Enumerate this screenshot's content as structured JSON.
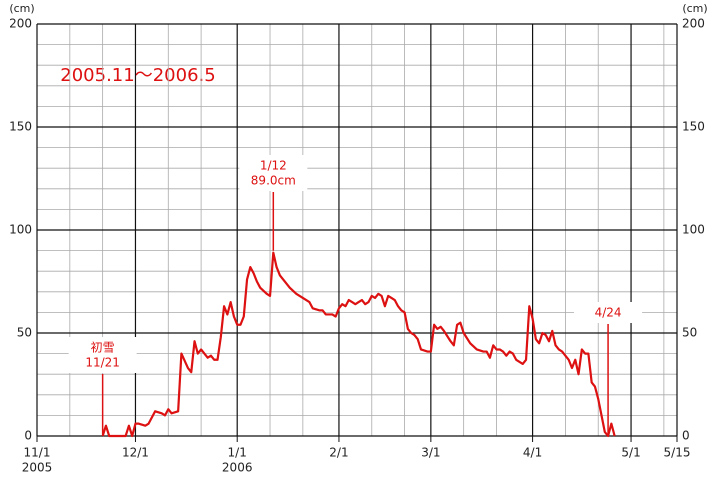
{
  "chart_data": {
    "type": "line",
    "title": "2005.11～2006.5",
    "y_unit": "(cm)",
    "y2_unit": "(cm)",
    "color": "#dd1111",
    "x": [
      "2005-11-21",
      "2005-11-22",
      "2005-11-23",
      "2005-11-28",
      "2005-11-29",
      "2005-11-30",
      "2005-12-01",
      "2005-12-02",
      "2005-12-04",
      "2005-12-05",
      "2005-12-07",
      "2005-12-09",
      "2005-12-10",
      "2005-12-11",
      "2005-12-12",
      "2005-12-14",
      "2005-12-15",
      "2005-12-17",
      "2005-12-18",
      "2005-12-19",
      "2005-12-20",
      "2005-12-21",
      "2005-12-23",
      "2005-12-24",
      "2005-12-25",
      "2005-12-26",
      "2005-12-27",
      "2005-12-28",
      "2005-12-29",
      "2005-12-30",
      "2005-12-31",
      "2006-01-01",
      "2006-01-02",
      "2006-01-03",
      "2006-01-04",
      "2006-01-05",
      "2006-01-06",
      "2006-01-07",
      "2006-01-08",
      "2006-01-10",
      "2006-01-11",
      "2006-01-12",
      "2006-01-13",
      "2006-01-14",
      "2006-01-15",
      "2006-01-17",
      "2006-01-19",
      "2006-01-21",
      "2006-01-23",
      "2006-01-24",
      "2006-01-26",
      "2006-01-27",
      "2006-01-28",
      "2006-01-30",
      "2006-01-31",
      "2006-02-01",
      "2006-02-02",
      "2006-02-03",
      "2006-02-04",
      "2006-02-05",
      "2006-02-06",
      "2006-02-07",
      "2006-02-08",
      "2006-02-09",
      "2006-02-10",
      "2006-02-11",
      "2006-02-12",
      "2006-02-13",
      "2006-02-14",
      "2006-02-15",
      "2006-02-16",
      "2006-02-17",
      "2006-02-18",
      "2006-02-19",
      "2006-02-20",
      "2006-02-21",
      "2006-02-22",
      "2006-02-23",
      "2006-02-24",
      "2006-02-25",
      "2006-02-26",
      "2006-02-28",
      "2006-03-01",
      "2006-03-02",
      "2006-03-03",
      "2006-03-04",
      "2006-03-05",
      "2006-03-07",
      "2006-03-08",
      "2006-03-09",
      "2006-03-10",
      "2006-03-11",
      "2006-03-13",
      "2006-03-15",
      "2006-03-17",
      "2006-03-18",
      "2006-03-19",
      "2006-03-20",
      "2006-03-21",
      "2006-03-22",
      "2006-03-23",
      "2006-03-24",
      "2006-03-25",
      "2006-03-26",
      "2006-03-27",
      "2006-03-29",
      "2006-03-30",
      "2006-03-31",
      "2006-04-01",
      "2006-04-02",
      "2006-04-03",
      "2006-04-04",
      "2006-04-05",
      "2006-04-06",
      "2006-04-07",
      "2006-04-08",
      "2006-04-09",
      "2006-04-10",
      "2006-04-11",
      "2006-04-12",
      "2006-04-13",
      "2006-04-14",
      "2006-04-15",
      "2006-04-16",
      "2006-04-17",
      "2006-04-18",
      "2006-04-19",
      "2006-04-20",
      "2006-04-21",
      "2006-04-22",
      "2006-04-23",
      "2006-04-24",
      "2006-04-25",
      "2006-04-26"
    ],
    "values": [
      0,
      5,
      0,
      0,
      5,
      0,
      6,
      6,
      5,
      6,
      12,
      11,
      10,
      13,
      11,
      12,
      40,
      33,
      31,
      46,
      40,
      42,
      38,
      39,
      37,
      37,
      48,
      63,
      59,
      65,
      58,
      54,
      54,
      58,
      76,
      82,
      79,
      75,
      72,
      69,
      68,
      89,
      82,
      78,
      76,
      72,
      69,
      67,
      65,
      62,
      61,
      61,
      59,
      59,
      58,
      62,
      64,
      63,
      66,
      65,
      64,
      65,
      66,
      64,
      65,
      68,
      67,
      69,
      68,
      63,
      68,
      67,
      66,
      63,
      61,
      60,
      52,
      50,
      49,
      47,
      42,
      41,
      41,
      54,
      52,
      53,
      51,
      46,
      44,
      54,
      55,
      50,
      45,
      42,
      41,
      41,
      38,
      44,
      42,
      42,
      41,
      39,
      41,
      40,
      37,
      35,
      37,
      63,
      57,
      47,
      45,
      50,
      49,
      46,
      51,
      44,
      42,
      41,
      39,
      37,
      33,
      37,
      30,
      42,
      40,
      40,
      26,
      24,
      18,
      10,
      2,
      0,
      6,
      0
    ],
    "xlim": [
      "2005-11-01",
      "2006-05-15"
    ],
    "xticks": [
      {
        "value": "2005-11-01",
        "label": "11/1"
      },
      {
        "value": "2005-12-01",
        "label": "12/1"
      },
      {
        "value": "2006-01-01",
        "label": "1/1"
      },
      {
        "value": "2006-02-01",
        "label": "2/1"
      },
      {
        "value": "2006-03-01",
        "label": "3/1"
      },
      {
        "value": "2006-04-01",
        "label": "4/1"
      },
      {
        "value": "2006-05-01",
        "label": "5/1"
      },
      {
        "value": "2006-05-15",
        "label": "5/15"
      }
    ],
    "xtick_years": [
      {
        "value": "2005-11-01",
        "label": "2005"
      },
      {
        "value": "2006-01-01",
        "label": "2006"
      }
    ],
    "ylim": [
      0,
      200
    ],
    "yticks": [
      0,
      50,
      100,
      150,
      200
    ],
    "y2lim": [
      0,
      200
    ],
    "y2ticks": [
      0,
      50,
      100,
      150,
      200
    ],
    "grid": true,
    "annotations": [
      {
        "lines": [
          "初雪",
          "11/21"
        ],
        "x": "2005-11-21",
        "y": 0
      },
      {
        "lines": [
          "1/12",
          "89.0cm"
        ],
        "x": "2006-01-12",
        "y": 89
      },
      {
        "lines": [
          "4/24"
        ],
        "x": "2006-04-24",
        "y": 0
      }
    ]
  }
}
